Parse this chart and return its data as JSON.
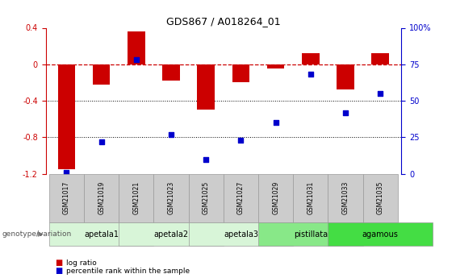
{
  "title": "GDS867 / A018264_01",
  "samples": [
    "GSM21017",
    "GSM21019",
    "GSM21021",
    "GSM21023",
    "GSM21025",
    "GSM21027",
    "GSM21029",
    "GSM21031",
    "GSM21033",
    "GSM21035"
  ],
  "log_ratio": [
    -1.15,
    -0.22,
    0.36,
    -0.18,
    -0.5,
    -0.2,
    -0.05,
    0.12,
    -0.28,
    0.12
  ],
  "percentile_rank": [
    1,
    22,
    78,
    27,
    10,
    23,
    35,
    68,
    42,
    55
  ],
  "ylim_left": [
    -1.2,
    0.4
  ],
  "ylim_right": [
    0,
    100
  ],
  "groups": [
    {
      "label": "apetala1",
      "start": 0,
      "end": 1,
      "color": "#d8f5d8"
    },
    {
      "label": "apetala2",
      "start": 2,
      "end": 3,
      "color": "#d8f5d8"
    },
    {
      "label": "apetala3",
      "start": 4,
      "end": 5,
      "color": "#d8f5d8"
    },
    {
      "label": "pistillata",
      "start": 6,
      "end": 7,
      "color": "#88e888"
    },
    {
      "label": "agamous",
      "start": 8,
      "end": 9,
      "color": "#44dd44"
    }
  ],
  "bar_color": "#cc0000",
  "dot_color": "#0000cc",
  "ref_line_color": "#cc0000",
  "sample_box_color": "#cccccc",
  "left_yticks": [
    -1.2,
    -0.8,
    -0.4,
    0.0,
    0.4
  ],
  "right_yticks": [
    0,
    25,
    50,
    75,
    100
  ]
}
